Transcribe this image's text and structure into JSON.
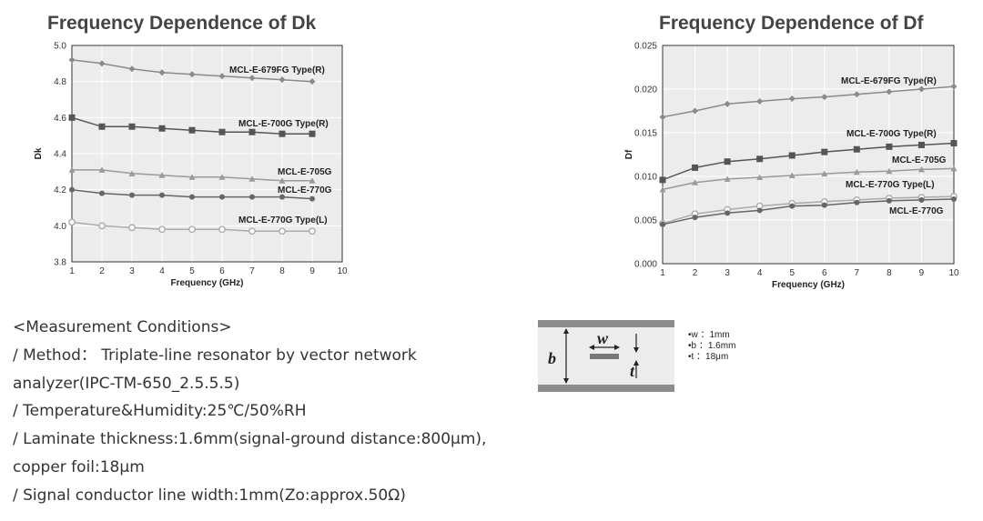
{
  "chart_data": [
    {
      "id": "dk",
      "type": "line",
      "title": "Frequency Dependence of Dk",
      "xlabel": "Frequency (GHz)",
      "ylabel": "Dk",
      "xlim": [
        1,
        10
      ],
      "ylim": [
        3.8,
        5.0
      ],
      "xticks": [
        "1",
        "2",
        "3",
        "4",
        "5",
        "6",
        "7",
        "8",
        "9",
        "10"
      ],
      "yticks": [
        "3.8",
        "4.0",
        "4.2",
        "4.4",
        "4.6",
        "4.8",
        "5.0"
      ],
      "grid": true,
      "x": [
        1,
        2,
        3,
        4,
        5,
        6,
        7,
        8,
        9
      ],
      "series": [
        {
          "name": "MCL-E-679FG Type(R)",
          "values": [
            4.92,
            4.9,
            4.87,
            4.85,
            4.84,
            4.83,
            4.82,
            4.81,
            4.8
          ],
          "marker": "diamond",
          "color": "#8a8a8a"
        },
        {
          "name": "MCL-E-700G Type(R)",
          "values": [
            4.6,
            4.55,
            4.55,
            4.54,
            4.53,
            4.52,
            4.52,
            4.51,
            4.51
          ],
          "marker": "square",
          "color": "#555555"
        },
        {
          "name": "MCL-E-705G",
          "values": [
            4.31,
            4.31,
            4.29,
            4.28,
            4.27,
            4.27,
            4.26,
            4.25,
            4.25
          ],
          "marker": "triangle",
          "color": "#9a9a9a"
        },
        {
          "name": "MCL-E-770G",
          "values": [
            4.2,
            4.18,
            4.17,
            4.17,
            4.16,
            4.16,
            4.16,
            4.16,
            4.15
          ],
          "marker": "circle",
          "color": "#666666"
        },
        {
          "name": "MCL-E-770G Type(L)",
          "values": [
            4.02,
            4.0,
            3.99,
            3.98,
            3.98,
            3.98,
            3.97,
            3.97,
            3.97
          ],
          "marker": "open-circle",
          "color": "#aaaaaa"
        }
      ]
    },
    {
      "id": "df",
      "type": "line",
      "title": "Frequency Dependence of Df",
      "xlabel": "Frequency (GHz)",
      "ylabel": "Df",
      "xlim": [
        1,
        10
      ],
      "ylim": [
        0,
        0.025
      ],
      "xticks": [
        "1",
        "2",
        "3",
        "4",
        "5",
        "6",
        "7",
        "8",
        "9",
        "10"
      ],
      "yticks": [
        "0.000",
        "0.005",
        "0.010",
        "0.015",
        "0.020",
        "0.025"
      ],
      "grid": true,
      "x": [
        1,
        2,
        3,
        4,
        5,
        6,
        7,
        8,
        9,
        10
      ],
      "series": [
        {
          "name": "MCL-E-679FG Type(R)",
          "values": [
            0.0168,
            0.0175,
            0.0183,
            0.0186,
            0.0189,
            0.0191,
            0.0194,
            0.0197,
            0.02,
            0.0203
          ],
          "marker": "diamond",
          "color": "#8a8a8a"
        },
        {
          "name": "MCL-E-700G Type(R)",
          "values": [
            0.0096,
            0.011,
            0.0117,
            0.012,
            0.0124,
            0.0128,
            0.0131,
            0.0134,
            0.0136,
            0.0138
          ],
          "marker": "square",
          "color": "#555555"
        },
        {
          "name": "MCL-E-705G",
          "values": [
            0.0085,
            0.0093,
            0.0097,
            0.0099,
            0.0101,
            0.0103,
            0.0105,
            0.0106,
            0.0108,
            0.0109
          ],
          "marker": "triangle",
          "color": "#9a9a9a"
        },
        {
          "name": "MCL-E-770G Type(L)",
          "values": [
            0.0046,
            0.0057,
            0.0062,
            0.0066,
            0.0069,
            0.0071,
            0.0073,
            0.0075,
            0.0076,
            0.0077
          ],
          "marker": "open-circle",
          "color": "#aaaaaa"
        },
        {
          "name": "MCL-E-770G",
          "values": [
            0.0045,
            0.0053,
            0.0058,
            0.0061,
            0.0066,
            0.0067,
            0.007,
            0.0072,
            0.0073,
            0.0074
          ],
          "marker": "circle",
          "color": "#666666"
        }
      ]
    }
  ],
  "conditions": {
    "lines": [
      "<Measurement Conditions>",
      "/ Method： Triplate-line resonator by vector network",
      "analyzer(IPC-TM-650_2.5.5.5)",
      "/ Temperature&Humidity:25℃/50%RH",
      "/ Laminate thickness:1.6mm(signal-ground distance:800μm),",
      "copper foil:18μm",
      "/ Signal conductor line width:1mm(Zo:approx.50Ω)"
    ]
  },
  "diagram": {
    "letters": {
      "b": "b",
      "w": "w",
      "t": "t"
    },
    "legend": [
      "•w ：1mm",
      "•b ：1.6mm",
      "•t ：18μm"
    ],
    "colors": {
      "plate": "#8c8c8c",
      "body": "#ececec"
    }
  }
}
